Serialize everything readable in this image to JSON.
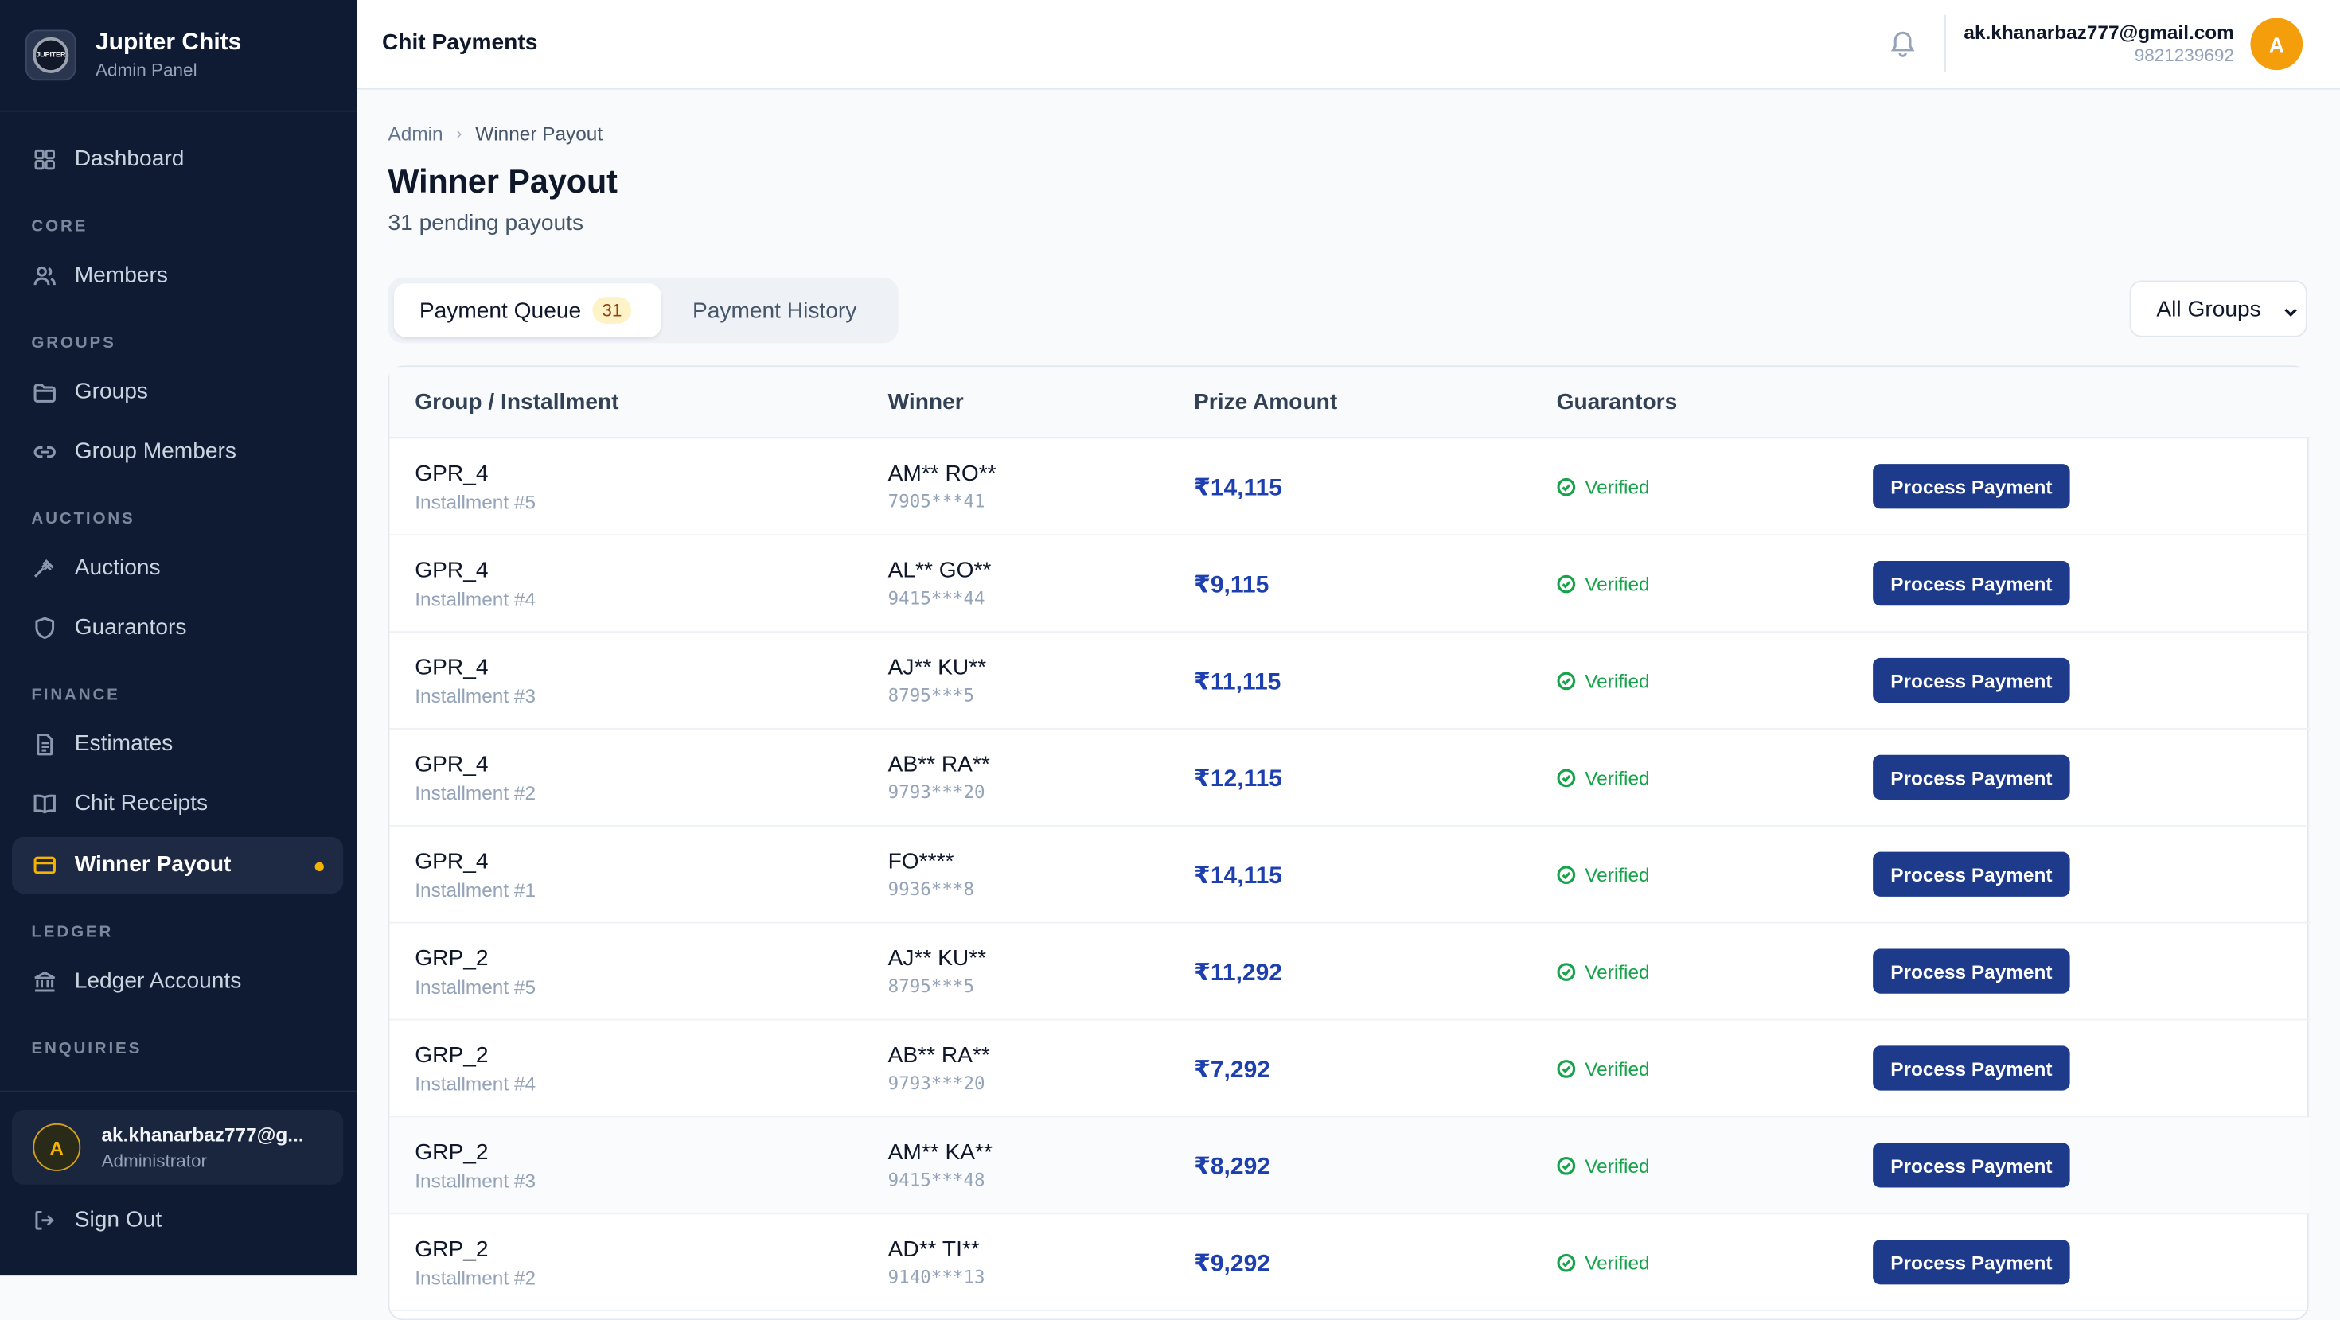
{
  "brand": {
    "logo_text": "JUPITER",
    "title": "Jupiter Chits",
    "subtitle": "Admin Panel"
  },
  "sidebar": {
    "items": [
      {
        "label": "Dashboard",
        "icon": "grid-icon"
      },
      {
        "section": "CORE"
      },
      {
        "label": "Members",
        "icon": "users-icon"
      },
      {
        "section": "GROUPS"
      },
      {
        "label": "Groups",
        "icon": "folder-icon"
      },
      {
        "label": "Group Members",
        "icon": "link-icon"
      },
      {
        "section": "AUCTIONS"
      },
      {
        "label": "Auctions",
        "icon": "gavel-icon"
      },
      {
        "label": "Guarantors",
        "icon": "shield-icon"
      },
      {
        "section": "FINANCE"
      },
      {
        "label": "Estimates",
        "icon": "document-icon"
      },
      {
        "label": "Chit Receipts",
        "icon": "book-icon"
      },
      {
        "label": "Winner Payout",
        "icon": "card-icon",
        "active": true
      },
      {
        "section": "LEDGER"
      },
      {
        "label": "Ledger Accounts",
        "icon": "bank-icon"
      },
      {
        "section": "ENQUIRIES"
      }
    ],
    "user": {
      "initial": "A",
      "email": "ak.khanarbaz777@g...",
      "role": "Administrator"
    },
    "sign_out": "Sign Out"
  },
  "header": {
    "title": "Chit Payments",
    "email": "ak.khanarbaz777@gmail.com",
    "phone": "9821239692",
    "avatar_initial": "A"
  },
  "breadcrumb": {
    "root": "Admin",
    "current": "Winner Payout"
  },
  "page": {
    "title": "Winner Payout",
    "subtitle": "31 pending payouts"
  },
  "tabs": {
    "queue_label": "Payment Queue",
    "queue_count": "31",
    "history_label": "Payment History"
  },
  "filter": {
    "selected": "All Groups"
  },
  "table": {
    "headers": [
      "Group / Installment",
      "Winner",
      "Prize Amount",
      "Guarantors"
    ],
    "rows": [
      {
        "group": "GPR_4",
        "installment": "Installment #5",
        "winner": "AM** RO**",
        "phone": "7905***41",
        "amount": "₹14,115",
        "guarantors": "Verified",
        "action": "Process Payment"
      },
      {
        "group": "GPR_4",
        "installment": "Installment #4",
        "winner": "AL** GO**",
        "phone": "9415***44",
        "amount": "₹9,115",
        "guarantors": "Verified",
        "action": "Process Payment"
      },
      {
        "group": "GPR_4",
        "installment": "Installment #3",
        "winner": "AJ** KU**",
        "phone": "8795***5",
        "amount": "₹11,115",
        "guarantors": "Verified",
        "action": "Process Payment"
      },
      {
        "group": "GPR_4",
        "installment": "Installment #2",
        "winner": "AB** RA**",
        "phone": "9793***20",
        "amount": "₹12,115",
        "guarantors": "Verified",
        "action": "Process Payment"
      },
      {
        "group": "GPR_4",
        "installment": "Installment #1",
        "winner": "FO****",
        "phone": "9936***8",
        "amount": "₹14,115",
        "guarantors": "Verified",
        "action": "Process Payment"
      },
      {
        "group": "GRP_2",
        "installment": "Installment #5",
        "winner": "AJ** KU**",
        "phone": "8795***5",
        "amount": "₹11,292",
        "guarantors": "Verified",
        "action": "Process Payment"
      },
      {
        "group": "GRP_2",
        "installment": "Installment #4",
        "winner": "AB** RA**",
        "phone": "9793***20",
        "amount": "₹7,292",
        "guarantors": "Verified",
        "action": "Process Payment"
      },
      {
        "group": "GRP_2",
        "installment": "Installment #3",
        "winner": "AM** KA**",
        "phone": "9415***48",
        "amount": "₹8,292",
        "guarantors": "Verified",
        "action": "Process Payment"
      },
      {
        "group": "GRP_2",
        "installment": "Installment #2",
        "winner": "AD** TI**",
        "phone": "9140***13",
        "amount": "₹9,292",
        "guarantors": "Verified",
        "action": "Process Payment"
      }
    ]
  },
  "colors": {
    "sidebar_bg": "#0f1b33",
    "accent": "#f5b301",
    "primary": "#1e3a8a",
    "amount": "#1e40af",
    "success": "#16a34a"
  }
}
